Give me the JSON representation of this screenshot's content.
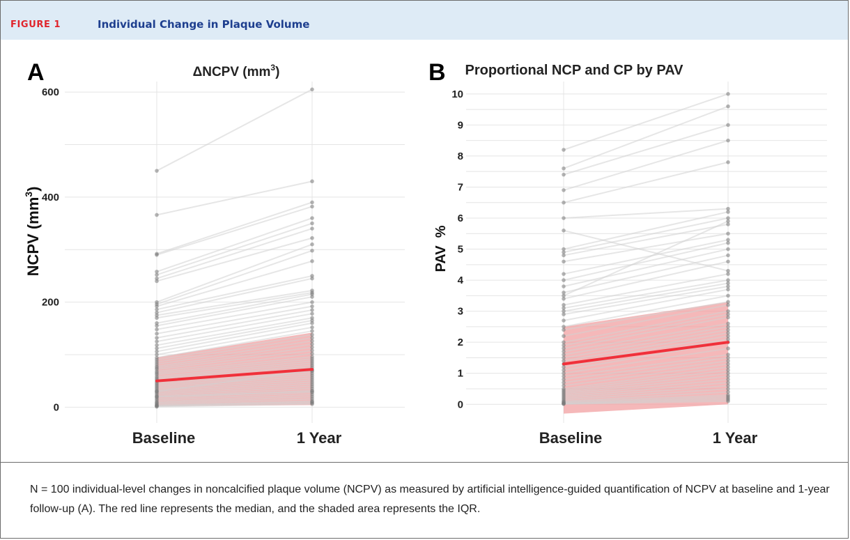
{
  "figure": {
    "label": "FIGURE 1",
    "title": "Individual Change in Plaque Volume",
    "caption": "N = 100 individual-level changes in noncalcified plaque volume (NCPV) as measured by artificial intelligence-guided quantification of NCPV at baseline and 1-year follow-up (A). The red line represents the median, and the shaded area represents the IQR."
  },
  "colors": {
    "label_red": "#e0242c",
    "title_blue": "#1e3f8f",
    "header_bg": "#deebf6",
    "median_line": "#f0303a",
    "iqr_fill": "#f2a0a2",
    "individual_lines": "#d2d2d2",
    "points": "#7a7a7a",
    "grid": "#e4e4e4"
  },
  "chart_data": [
    {
      "panel": "A",
      "type": "line",
      "title_main": "ΔNCPV (mm",
      "title_sup": "3",
      "title_end": ")",
      "ylabel_main": "NCPV (mm",
      "ylabel_sup": "3",
      "ylabel_end": ")",
      "categories": [
        "Baseline",
        "1 Year"
      ],
      "yticks": [
        0,
        200,
        400,
        600
      ],
      "ylim": [
        -30,
        620
      ],
      "grid": true,
      "median": [
        50,
        72
      ],
      "iqr": {
        "low": [
          2,
          4
        ],
        "high": [
          95,
          142
        ]
      },
      "pairs": [
        [
          450,
          605
        ],
        [
          366,
          430
        ],
        [
          292,
          390
        ],
        [
          290,
          382
        ],
        [
          258,
          360
        ],
        [
          252,
          350
        ],
        [
          245,
          340
        ],
        [
          240,
          322
        ],
        [
          200,
          310
        ],
        [
          196,
          298
        ],
        [
          192,
          278
        ],
        [
          186,
          250
        ],
        [
          180,
          245
        ],
        [
          175,
          222
        ],
        [
          170,
          218
        ],
        [
          160,
          215
        ],
        [
          155,
          210
        ],
        [
          148,
          200
        ],
        [
          140,
          192
        ],
        [
          132,
          185
        ],
        [
          125,
          178
        ],
        [
          118,
          170
        ],
        [
          112,
          165
        ],
        [
          106,
          160
        ],
        [
          100,
          152
        ],
        [
          94,
          145
        ],
        [
          90,
          138
        ],
        [
          86,
          132
        ],
        [
          82,
          126
        ],
        [
          78,
          120
        ],
        [
          75,
          114
        ],
        [
          72,
          108
        ],
        [
          68,
          102
        ],
        [
          65,
          96
        ],
        [
          62,
          92
        ],
        [
          58,
          88
        ],
        [
          55,
          84
        ],
        [
          52,
          80
        ],
        [
          49,
          76
        ],
        [
          46,
          72
        ],
        [
          43,
          68
        ],
        [
          40,
          64
        ],
        [
          37,
          60
        ],
        [
          34,
          56
        ],
        [
          31,
          52
        ],
        [
          28,
          48
        ],
        [
          25,
          44
        ],
        [
          22,
          40
        ],
        [
          19,
          36
        ],
        [
          16,
          32
        ],
        [
          13,
          28
        ],
        [
          10,
          24
        ],
        [
          8,
          20
        ],
        [
          6,
          16
        ],
        [
          4,
          12
        ],
        [
          3,
          10
        ],
        [
          2,
          8
        ],
        [
          1,
          6
        ],
        [
          30,
          70
        ],
        [
          20,
          30
        ]
      ]
    },
    {
      "panel": "B",
      "type": "line",
      "title": "Proportional NCP and CP by PAV",
      "ylabel": "PAV  %",
      "categories": [
        "Baseline",
        "1 Year"
      ],
      "yticks": [
        0,
        1,
        2,
        3,
        4,
        5,
        6,
        7,
        8,
        9,
        10
      ],
      "ylim": [
        -0.6,
        10.4
      ],
      "grid": true,
      "median": [
        1.3,
        2.0
      ],
      "iqr": {
        "low": [
          -0.3,
          0.0
        ],
        "high": [
          2.5,
          3.3
        ]
      },
      "pairs": [
        [
          8.2,
          10.0
        ],
        [
          7.6,
          9.6
        ],
        [
          7.4,
          9.0
        ],
        [
          6.9,
          8.5
        ],
        [
          6.5,
          7.8
        ],
        [
          6.0,
          6.3
        ],
        [
          5.0,
          6.2
        ],
        [
          4.9,
          6.0
        ],
        [
          4.8,
          5.8
        ],
        [
          4.6,
          5.5
        ],
        [
          4.2,
          5.3
        ],
        [
          4.0,
          5.2
        ],
        [
          3.8,
          5.0
        ],
        [
          3.6,
          4.8
        ],
        [
          3.4,
          4.6
        ],
        [
          3.2,
          4.2
        ],
        [
          3.1,
          4.0
        ],
        [
          3.0,
          3.9
        ],
        [
          2.9,
          3.8
        ],
        [
          2.7,
          3.7
        ],
        [
          2.5,
          3.5
        ],
        [
          2.4,
          3.3
        ],
        [
          2.2,
          3.2
        ],
        [
          2.0,
          3.0
        ],
        [
          1.9,
          2.9
        ],
        [
          1.8,
          2.8
        ],
        [
          1.7,
          2.6
        ],
        [
          1.6,
          2.5
        ],
        [
          1.5,
          2.4
        ],
        [
          1.4,
          2.3
        ],
        [
          1.3,
          2.2
        ],
        [
          1.2,
          2.1
        ],
        [
          1.1,
          2.0
        ],
        [
          1.0,
          1.8
        ],
        [
          0.9,
          1.6
        ],
        [
          0.8,
          1.5
        ],
        [
          0.7,
          1.4
        ],
        [
          0.6,
          1.3
        ],
        [
          0.5,
          1.2
        ],
        [
          0.45,
          1.1
        ],
        [
          0.4,
          1.0
        ],
        [
          0.35,
          0.9
        ],
        [
          0.3,
          0.8
        ],
        [
          0.25,
          0.7
        ],
        [
          0.2,
          0.6
        ],
        [
          0.15,
          0.5
        ],
        [
          0.1,
          0.4
        ],
        [
          0.08,
          0.3
        ],
        [
          0.05,
          0.25
        ],
        [
          0.03,
          0.2
        ],
        [
          0.02,
          0.15
        ],
        [
          0.01,
          0.1
        ],
        [
          5.6,
          4.3
        ],
        [
          3.5,
          5.9
        ]
      ]
    }
  ]
}
